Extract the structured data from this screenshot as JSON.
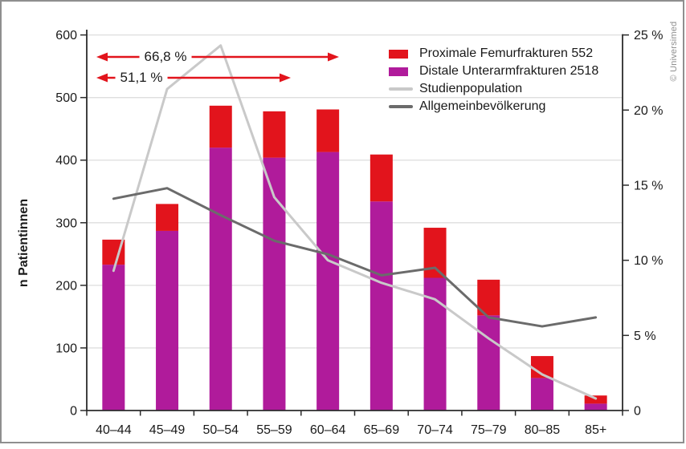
{
  "credit": "© Universimed",
  "chart_data": {
    "type": "bar",
    "subtype": "stacked bars with overlaid percentage lines",
    "title": "",
    "ylabel": "n Patientinnen",
    "xlabel": "",
    "right_axis_unit": "%",
    "grid": "horizontal",
    "legend_position": "top-right inside plot",
    "categories": [
      "40–44",
      "45–49",
      "50–54",
      "55–59",
      "60–64",
      "65–69",
      "70–74",
      "75–79",
      "80–85",
      "85+"
    ],
    "bar_series": [
      {
        "name": "Distale Unterarmfrakturen 2518",
        "color": "#b01b9b",
        "stack": "patients",
        "values": [
          233,
          287,
          420,
          404,
          413,
          334,
          212,
          152,
          52,
          11
        ]
      },
      {
        "name": "Proximale Femurfrakturen 552",
        "color": "#e2141c",
        "stack": "patients",
        "values": [
          40,
          43,
          67,
          74,
          68,
          75,
          80,
          57,
          35,
          13
        ]
      }
    ],
    "line_series": [
      {
        "name": "Studienpopulation",
        "color": "#c9c9c9",
        "axis": "right",
        "values_pct": [
          9.3,
          21.4,
          24.3,
          14.2,
          10.0,
          8.5,
          7.4,
          4.8,
          2.4,
          0.8
        ]
      },
      {
        "name": "Allgemeinbevölkerung",
        "color": "#6b6b6b",
        "axis": "right",
        "values_pct": [
          14.1,
          14.8,
          13.0,
          11.3,
          10.4,
          9.0,
          9.5,
          6.2,
          5.6,
          6.2
        ]
      }
    ],
    "legend": [
      {
        "label": "Proximale Femurfrakturen 552",
        "swatch": "rect",
        "color": "#e2141c"
      },
      {
        "label": "Distale Unterarmfrakturen 2518",
        "swatch": "rect",
        "color": "#b01b9b"
      },
      {
        "label": "Studienpopulation",
        "swatch": "line",
        "color": "#c9c9c9"
      },
      {
        "label": "Allgemeinbevölkerung",
        "swatch": "line",
        "color": "#6b6b6b"
      }
    ],
    "left_axis": {
      "min": 0,
      "max": 600,
      "ticks": [
        0,
        100,
        200,
        300,
        400,
        500,
        600
      ],
      "tick_labels": [
        "0",
        "100",
        "200",
        "300",
        "400",
        "500",
        "600"
      ]
    },
    "right_axis": {
      "min": 0,
      "max": 25,
      "ticks": [
        0,
        5,
        10,
        15,
        20,
        25
      ],
      "tick_labels": [
        "0",
        "5 %",
        "10 %",
        "15 %",
        "20 %",
        "25 %"
      ]
    },
    "annotations": [
      {
        "label": "66,8 %",
        "arrow": "double-headed red"
      },
      {
        "label": "51,1 %",
        "arrow": "double-headed red"
      }
    ]
  }
}
